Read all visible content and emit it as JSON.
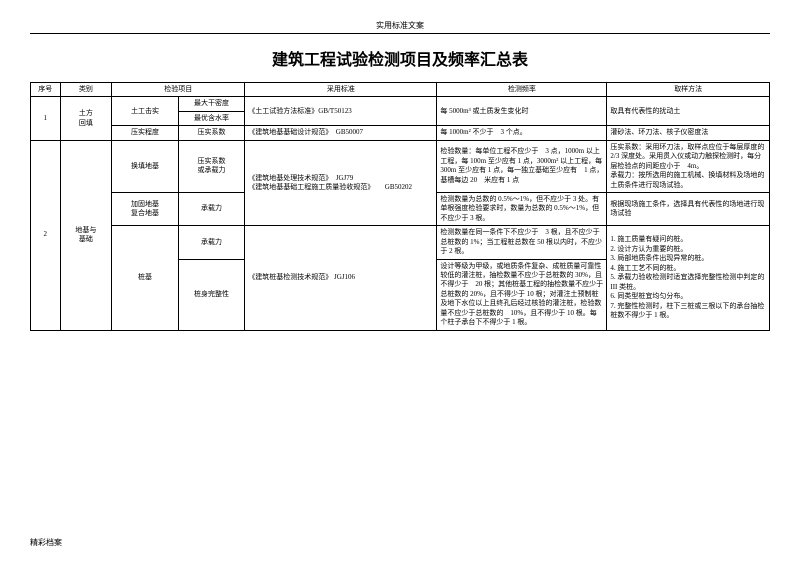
{
  "header_label": "实用标准文案",
  "title": "建筑工程试验检测项目及频率汇总表",
  "footer": "精彩档案",
  "headers": {
    "seq": "序号",
    "category": "类别",
    "test_item": "检验项目",
    "standard": "采用标准",
    "frequency": "检测频率",
    "sampling": "取样方法"
  },
  "table": {
    "r1": {
      "seq": "1",
      "category": "土方\n回填",
      "test_item_a": "土工击实",
      "sub_a1": "最大干密度",
      "sub_a2": "最优含水率",
      "standard_a": "《土工试验方法标准》GB/T50123",
      "freq_a": "每 5000m³ 或土质发生变化时",
      "sampling_a": "取具有代表性的扰动土",
      "test_item_b": "压实程度",
      "sub_b": "压实系数",
      "standard_b": "《建筑地基基础设计规范》　GB50007",
      "freq_b": "每 1000m² 不少于　3 个点。",
      "sampling_b": "灌砂法、环刀法、核子仪密度法"
    },
    "r2": {
      "seq": "2",
      "category": "地基与\n基础",
      "item_a": "换填地基",
      "sub_a": "压实系数\n或承载力",
      "standard_ab": "《建筑地基处理技术规范》　JGJ79\n《建筑地基基础工程施工质量验收规范》　　GB50202",
      "freq_a": "检验数量：每单位工程不应少于　3 点，1000m 以上工程，每 100m 至少应有 1 点，3000m² 以上工程，每 300m 至少应有 1 点，每一独立基础至少应有　1 点，基槽每边 20　米应有 1 点",
      "samp_a": "压实系数：采用环刀法，取样点应位于每层厚度的　2/3 深度处。采用贯入仪或动力触探检测时，每分层检验点的间距应小于　4m。\n承载力：按所选用的施工机械、换填材料及场地的土质条件进行现场试验。",
      "item_b": "加固地基\n复合地基",
      "sub_b": "承载力",
      "freq_b": "检测数量为总数的 0.5%～1%，但不应少于 3 处。有单根强度检验要求时，数量为总数的 0.5%～1%，但不应少于 3 根。",
      "samp_b": "根据现场施工条件，选择具有代表性的场地进行现场试验",
      "item_c": "桩基",
      "sub_c1": "承载力",
      "sub_c2": "桩身完整性",
      "standard_c": "《建筑桩基检测技术规范》 JGJ106",
      "freq_c1": "检测数量在同一条件下不应少于　3 根，且不应少于总桩数的 1%；当工程桩总数在 50 根以内时，不应少于 2 根。",
      "freq_c2": "设计等级为甲级，或地质条件复杂、成桩质量可靠性较低的灌注桩，抽检数量不应少于总桩数的 30%，且不得少于　20 根；其他桩基工程的抽检数量不应少于总桩数的 20%，且不得少于 10 根；对灌注土预制桩及地下水位以上且终孔后经过核验的灌注桩，检验数量不应少于总桩数的　10%，且不得少于 10 根。每个柱子承台下不得少于 1 根。",
      "samp_c": "1. 施工质量有疑问的桩。\n2. 设计方认为重要的桩。\n3. 局部地质条件出现异常的桩。\n4. 施工工艺不同的桩。\n5. 承载力验收检测时适宜选择完整性检测中判定的 III 类桩。\n6. 同类型桩宜均匀分布。\n7. 完整性检测时，柱下三桩或三根以下的承台抽检桩数不得少于 1 根。"
    }
  }
}
